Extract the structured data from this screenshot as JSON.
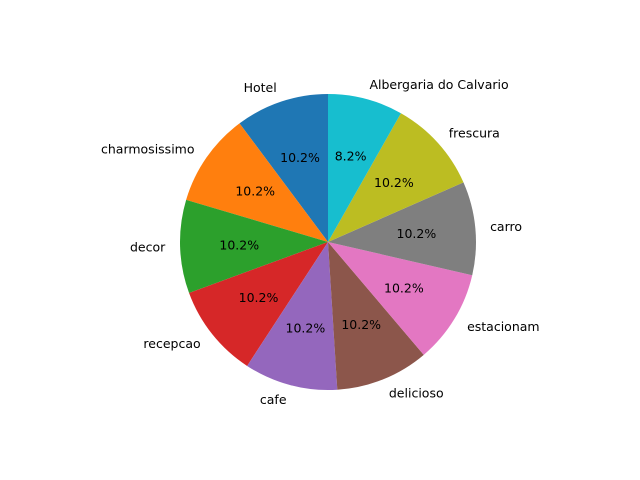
{
  "chart_data": {
    "type": "pie",
    "title": "",
    "start_angle_deg": 90,
    "direction": "counterclockwise",
    "categories": [
      "Hotel",
      "charmosissimo",
      "decor",
      "recepcao",
      "cafe",
      "delicioso",
      "estacionam",
      "carro",
      "frescura",
      "Albergaria do Calvario"
    ],
    "values": [
      10.2,
      10.2,
      10.2,
      10.2,
      10.2,
      10.2,
      10.2,
      10.2,
      10.2,
      8.2
    ],
    "percent_labels": [
      "10.2%",
      "10.2%",
      "10.2%",
      "10.2%",
      "10.2%",
      "10.2%",
      "10.2%",
      "10.2%",
      "10.2%",
      "8.2%"
    ],
    "colors": [
      "#1f77b4",
      "#ff7f0e",
      "#2ca02c",
      "#d62728",
      "#9467bd",
      "#8c564b",
      "#e377c2",
      "#7f7f7f",
      "#bcbd22",
      "#17becf"
    ],
    "legend": "none"
  }
}
